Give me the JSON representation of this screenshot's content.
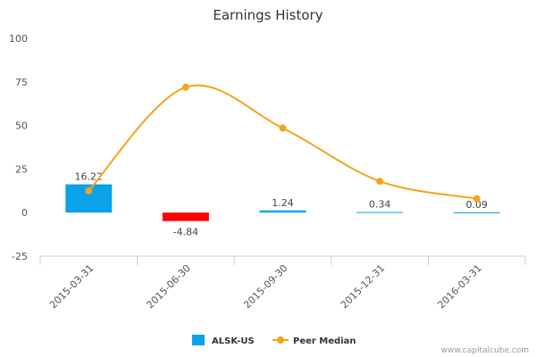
{
  "chart_data": {
    "type": "bar",
    "title": "Earnings History",
    "xlabel": "",
    "ylabel": "",
    "ylim": [
      -25,
      100
    ],
    "yticks": [
      100,
      75,
      50,
      25,
      0,
      -25
    ],
    "grid": false,
    "legend_position": "bottom",
    "categories": [
      "2015-03-31",
      "2015-06-30",
      "2015-09-30",
      "2015-12-31",
      "2016-03-31"
    ],
    "series": [
      {
        "name": "ALSK-US",
        "kind": "bar",
        "values": [
          16.22,
          -4.84,
          1.24,
          0.34,
          0.09
        ],
        "labels": [
          "16.22",
          "-4.84",
          "1.24",
          "0.34",
          "0.09"
        ],
        "color_positive": "#0aa2e8",
        "color_negative": "#ff0000"
      },
      {
        "name": "Peer Median",
        "kind": "line",
        "values": [
          12.5,
          72.0,
          48.5,
          18.0,
          8.0
        ],
        "color": "#f5a31a"
      }
    ]
  },
  "watermark": "www.capitalcube.com"
}
